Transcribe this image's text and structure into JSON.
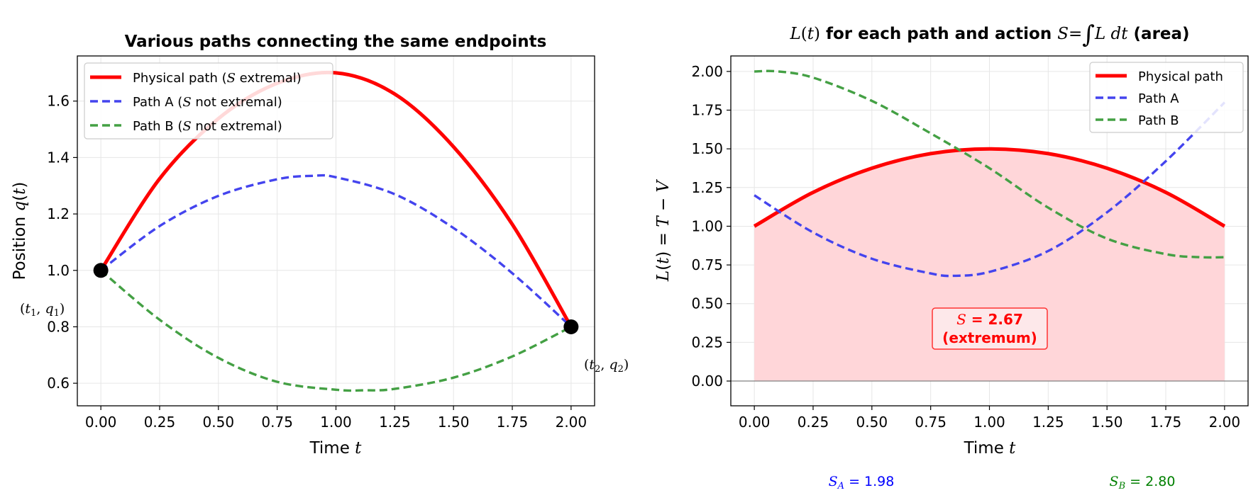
{
  "colors": {
    "physical": "#ff0000",
    "path_a": "#4444ee",
    "path_b": "#44a044",
    "fill": "#ffd6d9",
    "endpoint": "#000000",
    "grid": "#e6e6e6",
    "sum_a": "#0000ff",
    "sum_b": "#008000"
  },
  "chart_data": [
    {
      "type": "line",
      "title": "Various paths connecting the same endpoints",
      "xlabel": "Time t",
      "ylabel": "Position q(t)",
      "xlim": [
        -0.1,
        2.1
      ],
      "ylim": [
        0.52,
        1.76
      ],
      "xticks": [
        "0.00",
        "0.25",
        "0.50",
        "0.75",
        "1.00",
        "1.25",
        "1.50",
        "1.75",
        "2.00"
      ],
      "yticks": [
        "0.6",
        "0.8",
        "1.0",
        "1.2",
        "1.4",
        "1.6"
      ],
      "grid": true,
      "legend_position": "top-left",
      "legend": [
        "Physical path (S extremal)",
        "Path A (S not extremal)",
        "Path B (S not extremal)"
      ],
      "series": [
        {
          "name": "Physical path (S extremal)",
          "style": "solid",
          "x": [
            0,
            0.25,
            0.5,
            0.75,
            1.0,
            1.25,
            1.5,
            1.75,
            2.0
          ],
          "y": [
            1.0,
            1.325,
            1.538,
            1.663,
            1.7,
            1.625,
            1.438,
            1.163,
            0.8
          ]
        },
        {
          "name": "Path A (S not extremal)",
          "style": "dashed",
          "x": [
            0,
            0.25,
            0.5,
            0.75,
            0.9,
            1.0,
            1.25,
            1.5,
            1.75,
            2.0
          ],
          "y": [
            1.0,
            1.157,
            1.264,
            1.323,
            1.335,
            1.33,
            1.27,
            1.15,
            0.99,
            0.8
          ]
        },
        {
          "name": "Path B (S not extremal)",
          "style": "dashed",
          "x": [
            0,
            0.25,
            0.5,
            0.75,
            1.0,
            1.12,
            1.25,
            1.5,
            1.75,
            2.0
          ],
          "y": [
            1.0,
            0.825,
            0.69,
            0.605,
            0.577,
            0.575,
            0.58,
            0.62,
            0.695,
            0.8
          ]
        }
      ],
      "endpoints": [
        {
          "label": "(t1, q1)",
          "x": 0,
          "y": 1.0
        },
        {
          "label": "(t2, q2)",
          "x": 2.0,
          "y": 0.8
        }
      ]
    },
    {
      "type": "area",
      "title": "L(t) for each path and action S = ∫ L dt (area)",
      "xlabel": "Time t",
      "ylabel": "L(t) = T − V",
      "xlim": [
        -0.1,
        2.1
      ],
      "ylim": [
        -0.16,
        2.1
      ],
      "xticks": [
        "0.00",
        "0.25",
        "0.50",
        "0.75",
        "1.00",
        "1.25",
        "1.50",
        "1.75",
        "2.00"
      ],
      "yticks": [
        "0.00",
        "0.25",
        "0.50",
        "0.75",
        "1.00",
        "1.25",
        "1.50",
        "1.75",
        "2.00"
      ],
      "grid": true,
      "legend_position": "top-right",
      "legend": [
        "Physical path",
        "Path A",
        "Path B"
      ],
      "series": [
        {
          "name": "Physical path",
          "style": "solid",
          "filled": true,
          "x": [
            0,
            0.25,
            0.5,
            0.75,
            1.0,
            1.25,
            1.5,
            1.75,
            2.0
          ],
          "y": [
            1.0,
            1.219,
            1.375,
            1.469,
            1.5,
            1.469,
            1.375,
            1.219,
            1.0
          ]
        },
        {
          "name": "Path A",
          "style": "dashed",
          "x": [
            0,
            0.25,
            0.5,
            0.75,
            0.85,
            1.0,
            1.25,
            1.5,
            1.75,
            2.0
          ],
          "y": [
            1.2,
            0.96,
            0.79,
            0.695,
            0.68,
            0.705,
            0.84,
            1.09,
            1.42,
            1.8
          ]
        },
        {
          "name": "Path B",
          "style": "dashed",
          "x": [
            0,
            0.1,
            0.25,
            0.5,
            0.75,
            1.0,
            1.25,
            1.5,
            1.75,
            1.9,
            2.0
          ],
          "y": [
            2.0,
            2.0,
            1.96,
            1.81,
            1.6,
            1.375,
            1.12,
            0.92,
            0.82,
            0.8,
            0.8
          ]
        }
      ],
      "annotation": {
        "label": "S = 2.67",
        "sublabel": "(extremum)"
      },
      "action_values": [
        {
          "label": "S_A = 1.98",
          "value": 1.98
        },
        {
          "label": "S_B = 2.80",
          "value": 2.8
        }
      ]
    }
  ]
}
